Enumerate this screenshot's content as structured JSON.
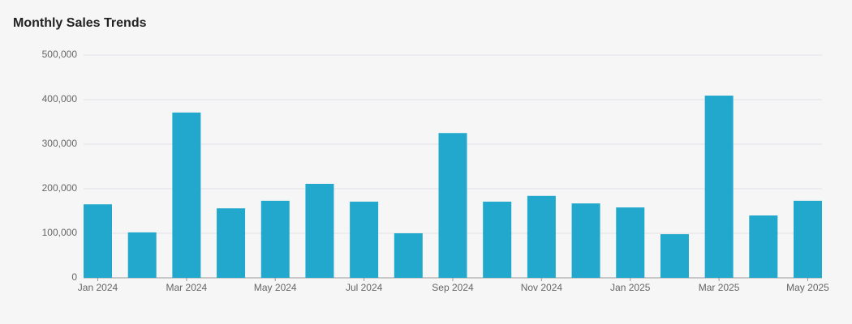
{
  "chart_data": {
    "type": "bar",
    "title": "Monthly Sales Trends",
    "categories": [
      "Jan 2024",
      null,
      "Mar 2024",
      null,
      "May 2024",
      null,
      "Jul 2024",
      null,
      "Sep 2024",
      null,
      "Nov 2024",
      null,
      "Jan 2025",
      null,
      "Mar 2025",
      null,
      "May 2025"
    ],
    "values": [
      165000,
      102000,
      371000,
      156000,
      173000,
      211000,
      171000,
      100000,
      325000,
      171000,
      184000,
      167000,
      158000,
      98000,
      409000,
      140000,
      173000
    ],
    "color": "#22a8cc",
    "ylim": [
      0,
      500000
    ],
    "yticks": [
      0,
      {
        "value": 100000,
        "label": "100,000"
      },
      {
        "value": 200000,
        "label": "200,000"
      },
      {
        "value": 300000,
        "label": "300,000"
      },
      {
        "value": 400000,
        "label": "400,000"
      },
      {
        "value": 500000,
        "label": "500,000"
      }
    ],
    "grid": true
  }
}
